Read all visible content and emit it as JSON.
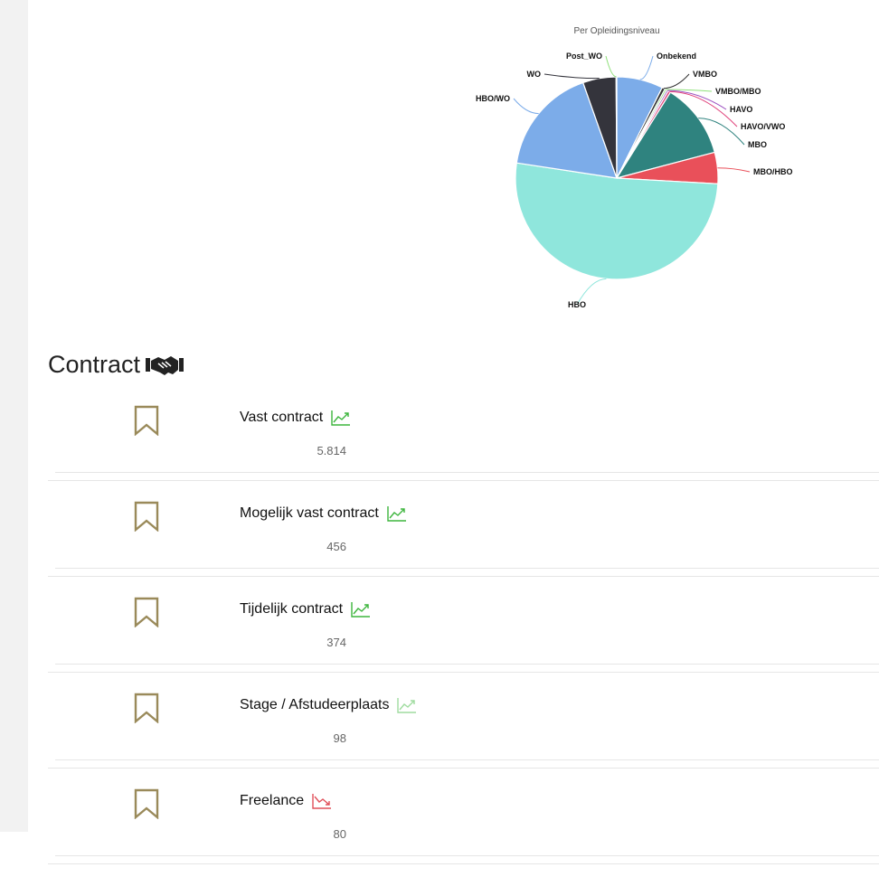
{
  "chart_data": {
    "type": "pie",
    "title": "Per Opleidingsniveau",
    "categories": [
      "Onbekend",
      "VMBO",
      "VMBO/MBO",
      "HAVO",
      "HAVO/VWO",
      "MBO",
      "MBO/HBO",
      "HBO",
      "HBO/WO",
      "WO",
      "Post_WO"
    ],
    "values": [
      7.4,
      0.5,
      0.3,
      0.3,
      0.4,
      12.0,
      5.0,
      51.5,
      17.2,
      5.3,
      0.1
    ],
    "colors": [
      "#7cace9",
      "#343434",
      "#8fe07a",
      "#9b4dbf",
      "#e0427a",
      "#2f837f",
      "#e9505a",
      "#8fe6dc",
      "#7cace9",
      "#34343c",
      "#8fe07a"
    ],
    "legend": "none"
  },
  "section": {
    "title": "Contract",
    "icon": "handshake-icon"
  },
  "contracts": [
    {
      "name": "Vast contract",
      "count": "5.814",
      "trend": "up",
      "trend_color": "#3db53d"
    },
    {
      "name": "Mogelijk vast contract",
      "count": "456",
      "trend": "up",
      "trend_color": "#3db53d"
    },
    {
      "name": "Tijdelijk contract",
      "count": "374",
      "trend": "up",
      "trend_color": "#3db53d"
    },
    {
      "name": "Stage / Afstudeerplaats",
      "count": "98",
      "trend": "up",
      "trend_color": "#9fdc9f"
    },
    {
      "name": "Freelance",
      "count": "80",
      "trend": "down",
      "trend_color": "#e0505a"
    }
  ],
  "colors": {
    "bookmark": "#9a8a5a",
    "rail": "#f2f2f2"
  }
}
